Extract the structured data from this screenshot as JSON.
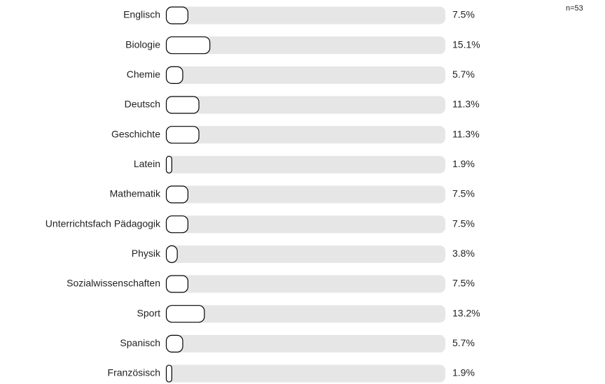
{
  "chart_data": {
    "type": "bar",
    "orientation": "horizontal",
    "annotation": "n=53",
    "categories": [
      "Englisch",
      "Biologie",
      "Chemie",
      "Deutsch",
      "Geschichte",
      "Latein",
      "Mathematik",
      "Unterrichtsfach Pädagogik",
      "Physik",
      "Sozialwissenschaften",
      "Sport",
      "Spanisch",
      "Französisch"
    ],
    "values": [
      7.5,
      15.1,
      5.7,
      11.3,
      11.3,
      1.9,
      7.5,
      7.5,
      3.8,
      7.5,
      13.2,
      5.7,
      1.9
    ],
    "value_labels": [
      "7.5%",
      "15.1%",
      "5.7%",
      "11.3%",
      "11.3%",
      "1.9%",
      "7.5%",
      "7.5%",
      "3.8%",
      "7.5%",
      "13.2%",
      "5.7%",
      "1.9%"
    ],
    "xlim": [
      0,
      100
    ],
    "color": "#ffffff"
  }
}
